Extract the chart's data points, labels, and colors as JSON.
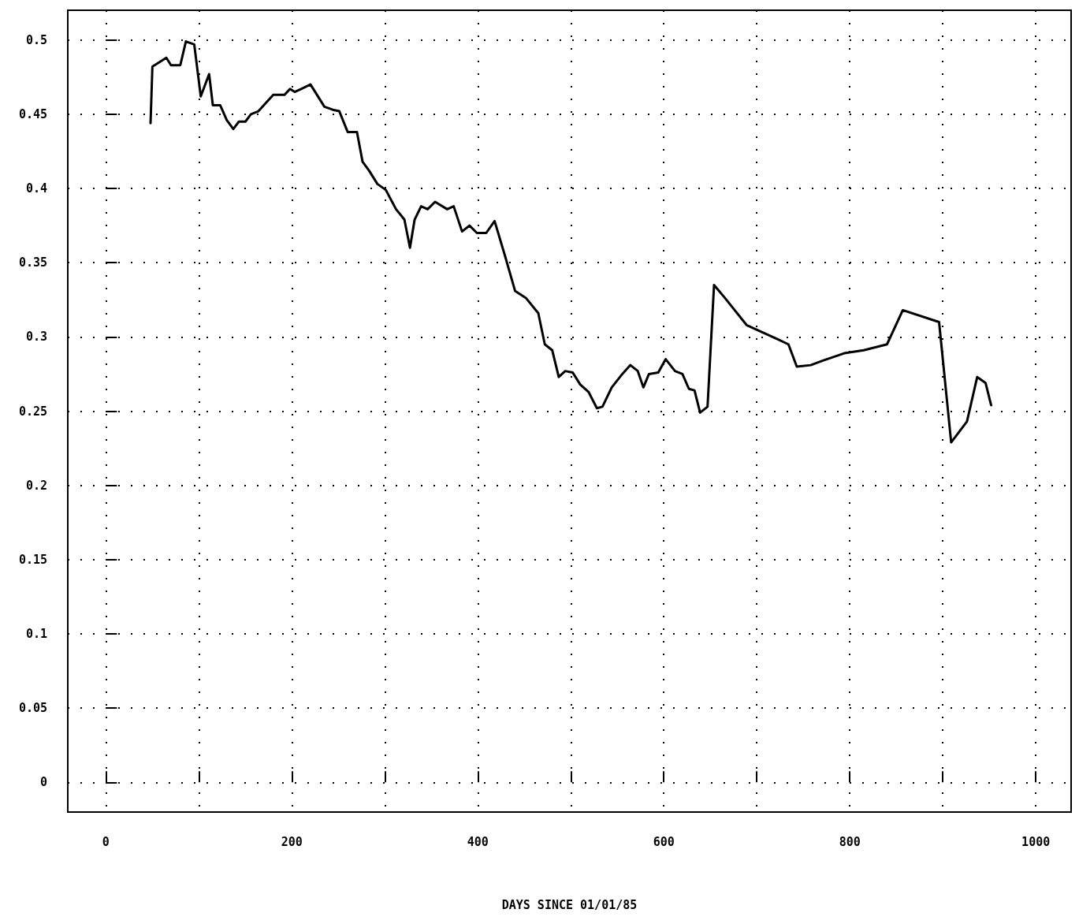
{
  "chart_data": {
    "type": "line",
    "xlabel": "DAYS SINCE 01/01/85",
    "x": [
      48,
      50,
      65,
      70,
      80,
      86,
      95,
      102,
      111,
      115,
      123,
      130,
      137,
      143,
      150,
      156,
      164,
      180,
      192,
      198,
      203,
      210,
      220,
      235,
      244,
      251,
      260,
      270,
      276,
      283,
      292,
      301,
      312,
      321,
      327,
      332,
      339,
      346,
      354,
      367,
      374,
      383,
      391,
      399,
      409,
      418,
      429,
      440,
      452,
      465,
      472,
      480,
      487,
      494,
      502,
      510,
      519,
      528,
      534,
      544,
      554,
      564,
      572,
      578,
      584,
      594,
      602,
      612,
      620,
      627,
      633,
      639,
      647,
      654,
      666,
      689,
      724,
      734,
      743,
      758,
      771,
      794,
      815,
      840,
      857,
      896,
      909,
      926,
      937,
      946,
      952
    ],
    "series": [
      {
        "color": "#000000",
        "values": [
          0.444,
          0.482,
          0.488,
          0.483,
          0.483,
          0.499,
          0.497,
          0.462,
          0.477,
          0.456,
          0.456,
          0.446,
          0.44,
          0.445,
          0.445,
          0.45,
          0.452,
          0.463,
          0.463,
          0.467,
          0.465,
          0.467,
          0.47,
          0.455,
          0.453,
          0.452,
          0.438,
          0.438,
          0.418,
          0.412,
          0.403,
          0.399,
          0.386,
          0.379,
          0.36,
          0.379,
          0.388,
          0.386,
          0.391,
          0.386,
          0.388,
          0.371,
          0.375,
          0.37,
          0.37,
          0.378,
          0.355,
          0.331,
          0.326,
          0.316,
          0.295,
          0.291,
          0.273,
          0.277,
          0.276,
          0.268,
          0.263,
          0.252,
          0.253,
          0.266,
          0.274,
          0.281,
          0.277,
          0.266,
          0.275,
          0.276,
          0.285,
          0.277,
          0.275,
          0.265,
          0.264,
          0.249,
          0.253,
          0.335,
          0.326,
          0.308,
          0.298,
          0.295,
          0.28,
          0.281,
          0.284,
          0.289,
          0.291,
          0.295,
          0.318,
          0.31,
          0.229,
          0.243,
          0.273,
          0.269,
          0.254
        ]
      }
    ],
    "xlim": [
      -41,
      1038
    ],
    "ylim": [
      -0.02,
      0.52
    ],
    "xticks": [
      0,
      {
        "value": 100,
        "label": null
      },
      200,
      {
        "value": 300,
        "label": null
      },
      400,
      {
        "value": 500,
        "label": null
      },
      600,
      {
        "value": 700,
        "label": null
      },
      800,
      {
        "value": 900,
        "label": null
      },
      1000
    ],
    "yticks": [
      0,
      0.05,
      0.1,
      0.15,
      0.2,
      0.25,
      0.3,
      0.35,
      0.4,
      0.45,
      0.5
    ],
    "grid": true,
    "line_style": "solid",
    "marker": "none"
  }
}
